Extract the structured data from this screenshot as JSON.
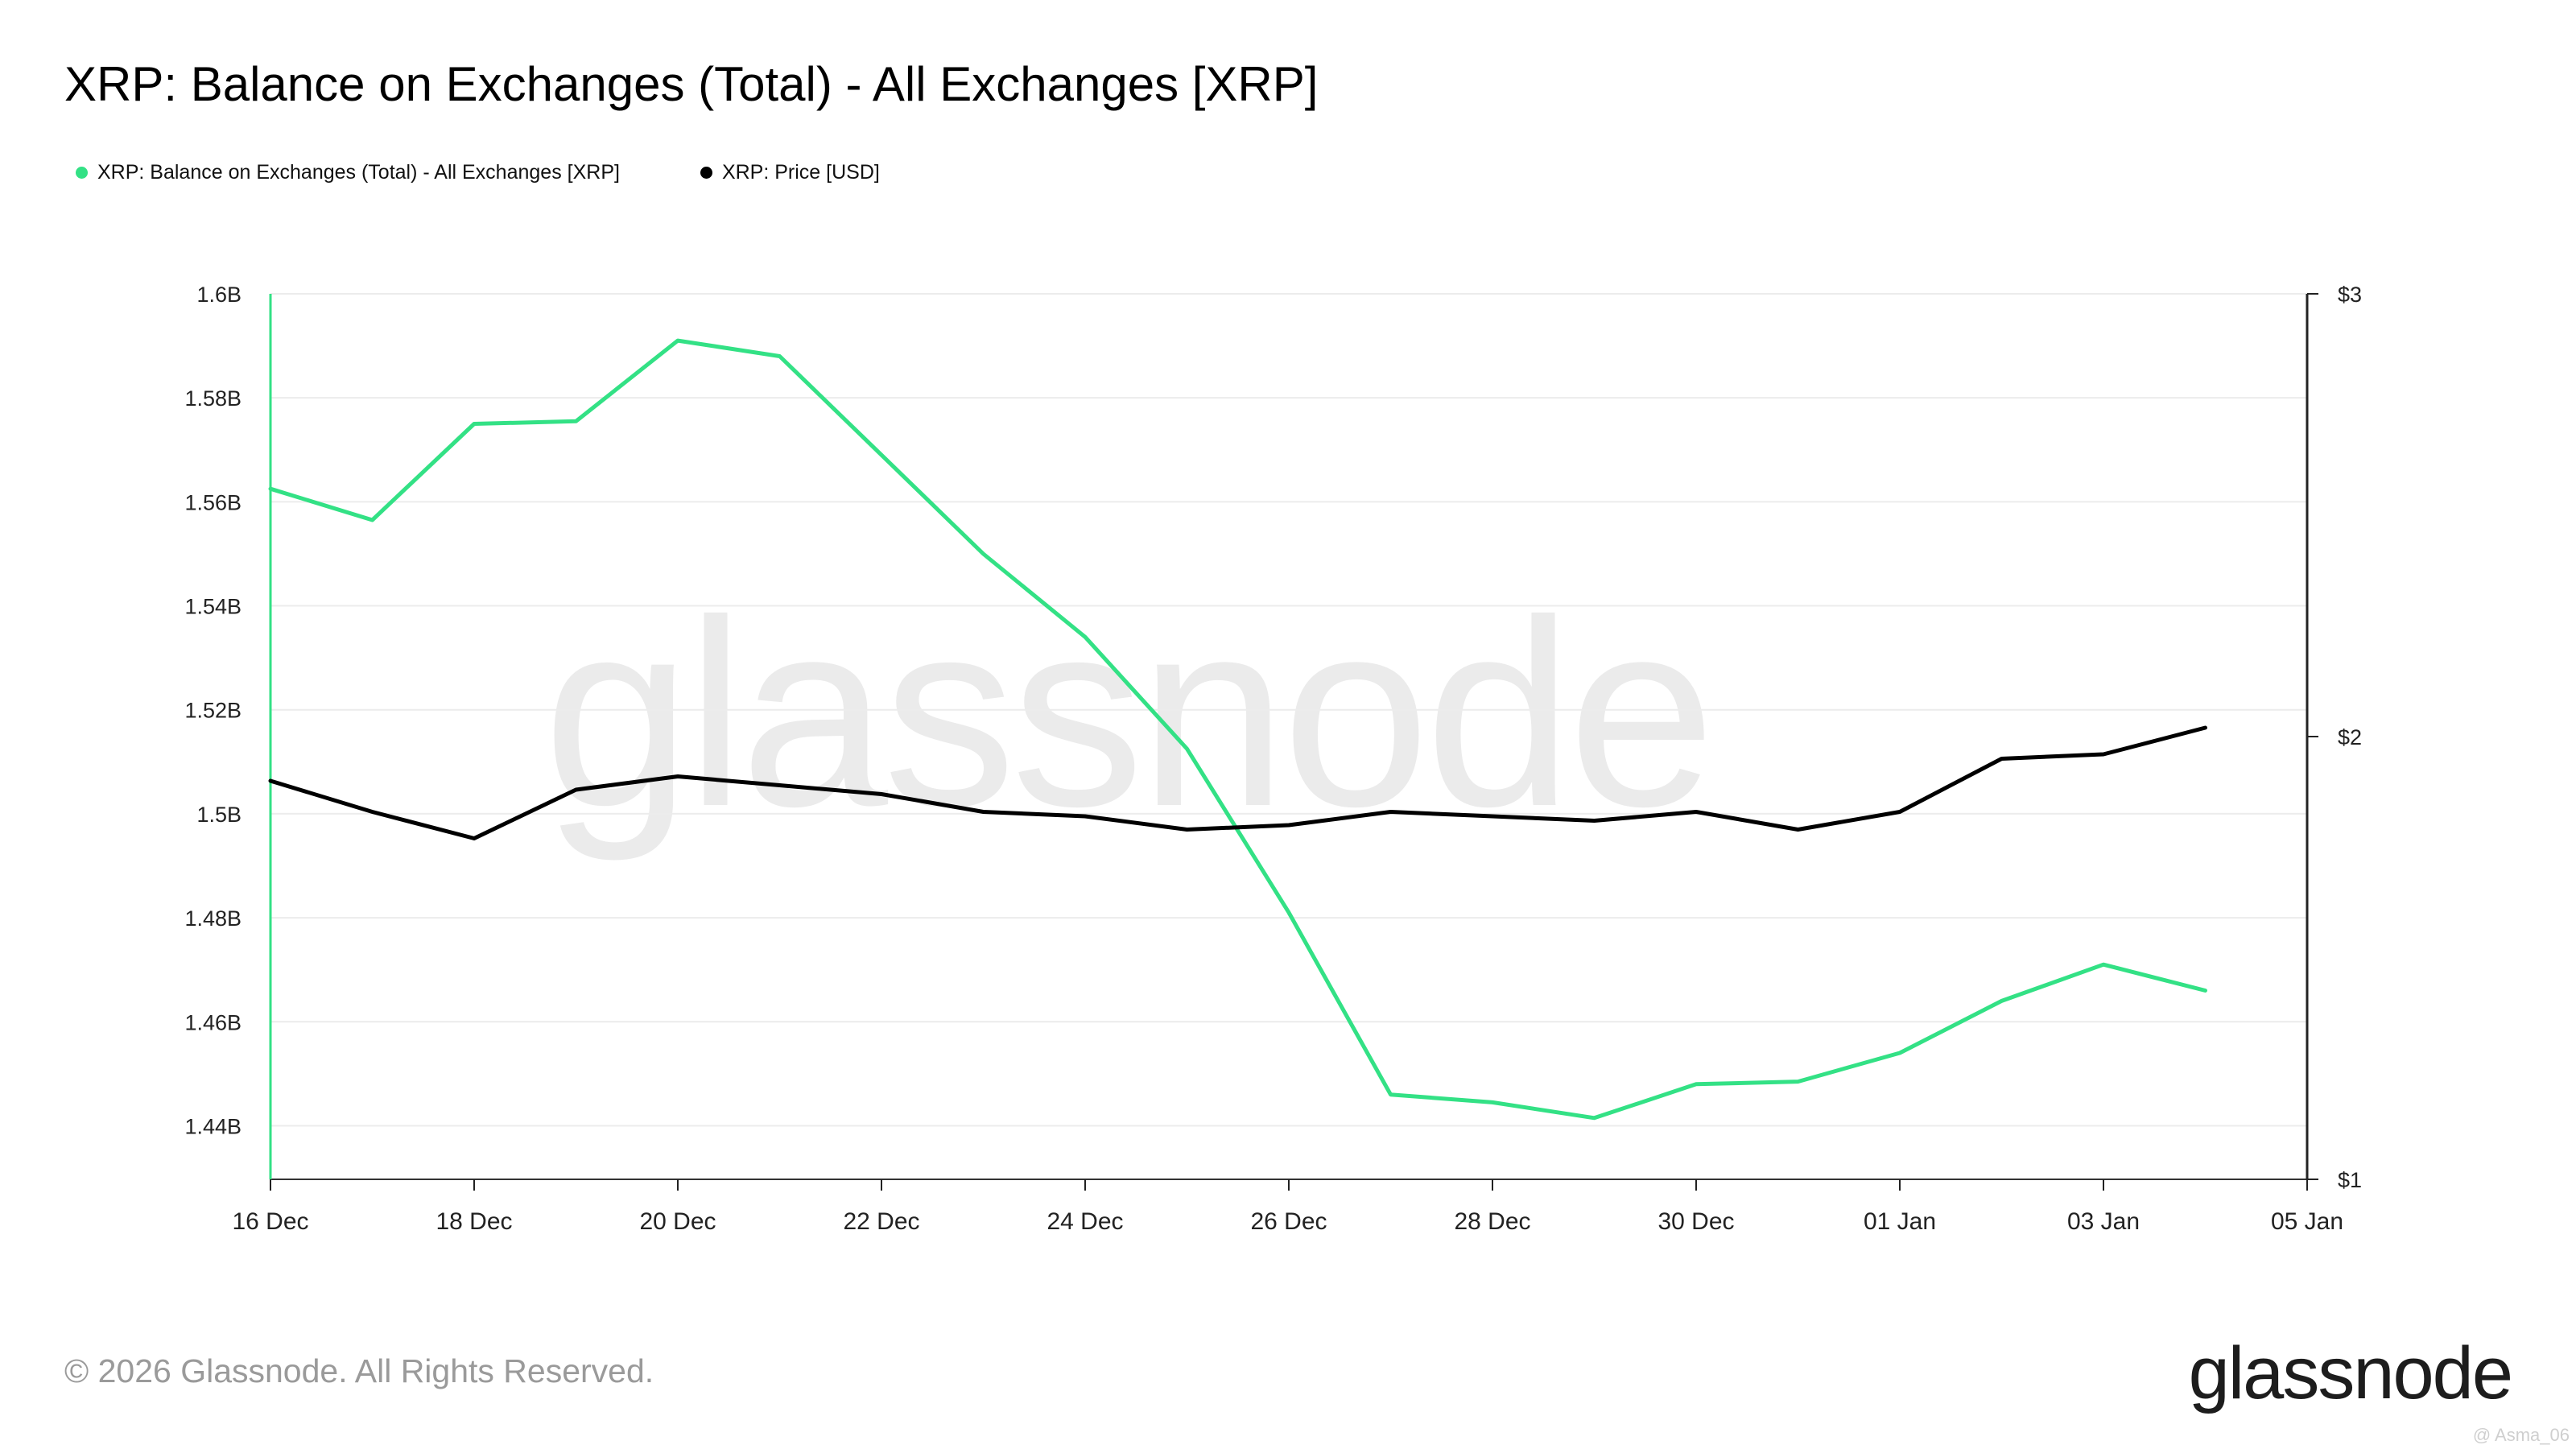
{
  "title": "XRP: Balance on Exchanges (Total) - All Exchanges [XRP]",
  "legend": [
    {
      "label": "XRP: Balance on Exchanges (Total) - All Exchanges [XRP]",
      "color": "#33e185"
    },
    {
      "label": "XRP: Price [USD]",
      "color": "#000000"
    }
  ],
  "watermark": "glassnode",
  "footer": {
    "copyright": "© 2026 Glassnode. All Rights Reserved.",
    "logo": "glassnode",
    "credit": "@ Asma_06"
  },
  "colors": {
    "balance": "#33e185",
    "price": "#000000",
    "grid": "#ececec",
    "watermark": "#ebebeb"
  },
  "chart_data": {
    "type": "line",
    "x": [
      "2025-12-16",
      "2025-12-17",
      "2025-12-18",
      "2025-12-19",
      "2025-12-20",
      "2025-12-21",
      "2025-12-22",
      "2025-12-23",
      "2025-12-24",
      "2025-12-25",
      "2025-12-26",
      "2025-12-27",
      "2025-12-28",
      "2025-12-29",
      "2025-12-30",
      "2025-12-31",
      "2026-01-01",
      "2026-01-02",
      "2026-01-03",
      "2026-01-04"
    ],
    "x_ticks": [
      "16 Dec",
      "18 Dec",
      "20 Dec",
      "22 Dec",
      "24 Dec",
      "26 Dec",
      "28 Dec",
      "30 Dec",
      "01 Jan",
      "03 Jan",
      "05 Jan"
    ],
    "x_range": [
      "2025-12-16",
      "2026-01-05"
    ],
    "y_left_ticks": [
      "1.6B",
      "1.58B",
      "1.56B",
      "1.54B",
      "1.52B",
      "1.5B",
      "1.48B",
      "1.46B",
      "1.44B"
    ],
    "y_left_range": [
      1.4297,
      1.6
    ],
    "y_right_ticks": [
      "$3",
      "$2",
      "$1"
    ],
    "y_right_range": [
      1,
      3
    ],
    "grid": true,
    "legend_position": "top-left",
    "series": [
      {
        "name": "XRP: Balance on Exchanges (Total) - All Exchanges [XRP]",
        "axis": "left",
        "values": [
          1.5625,
          1.5565,
          1.575,
          1.5755,
          1.591,
          1.588,
          1.569,
          1.55,
          1.534,
          1.5125,
          1.481,
          1.446,
          1.4445,
          1.4415,
          1.448,
          1.4485,
          1.454,
          1.464,
          1.471,
          1.466
        ]
      },
      {
        "name": "XRP: Price [USD]",
        "axis": "right",
        "values": [
          1.9,
          1.83,
          1.77,
          1.88,
          1.91,
          1.89,
          1.87,
          1.83,
          1.82,
          1.79,
          1.8,
          1.83,
          1.82,
          1.81,
          1.83,
          1.79,
          1.83,
          1.95,
          1.96,
          2.02
        ]
      }
    ]
  }
}
